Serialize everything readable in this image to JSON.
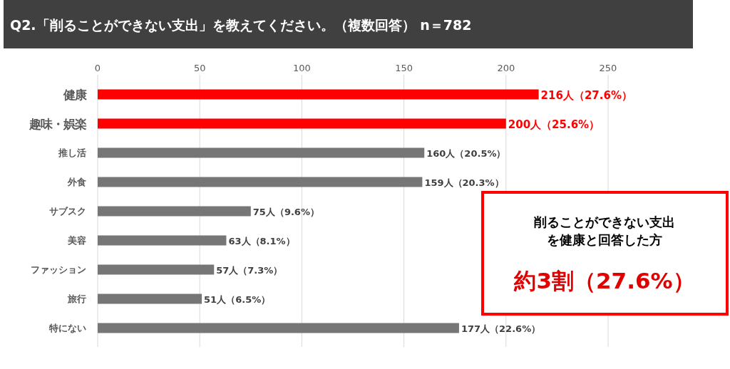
{
  "chart_data": {
    "type": "bar",
    "orientation": "horizontal",
    "title": "Q2.「削ることができない支出」を教えてください。（複数回答） n＝782",
    "categories": [
      "健康",
      "趣味・娯楽",
      "推し活",
      "外食",
      "サブスク",
      "美容",
      "ファッション",
      "旅行",
      "特にない"
    ],
    "values": [
      216,
      200,
      160,
      159,
      75,
      63,
      57,
      51,
      177
    ],
    "colors": [
      "#ff0000",
      "#ff0000",
      "#767676",
      "#767676",
      "#767676",
      "#767676",
      "#767676",
      "#767676",
      "#767676"
    ],
    "value_labels": [
      "216人（27.6%）",
      "200人（25.6%）",
      "160人（20.5%）",
      "159人（20.3%）",
      "75人（9.6%）",
      "63人（8.1%）",
      "57人（7.3%）",
      "51人（6.5%）",
      "177人（22.6%）"
    ],
    "xlim": [
      0,
      250
    ],
    "xticks": [
      0,
      50,
      100,
      150,
      200,
      250
    ],
    "grid": "x",
    "annotations": [
      "削ることができない支出",
      "を健康と回答した方",
      "約3割（27.6%）"
    ]
  }
}
